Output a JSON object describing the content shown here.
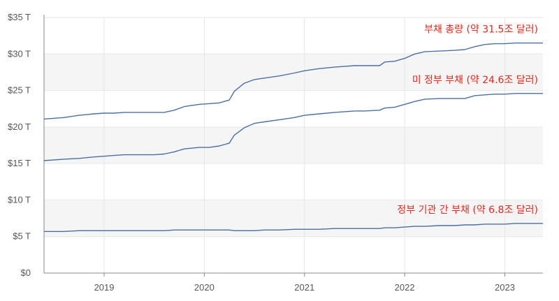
{
  "chart_data": {
    "type": "line",
    "ylim": [
      0,
      35
    ],
    "xlim": [
      2018.4,
      2023.38
    ],
    "yticks": [
      {
        "value": 0,
        "label": "$0"
      },
      {
        "value": 5,
        "label": "$5 T"
      },
      {
        "value": 10,
        "label": "$10 T"
      },
      {
        "value": 15,
        "label": "$15 T"
      },
      {
        "value": 20,
        "label": "$20 T"
      },
      {
        "value": 25,
        "label": "$25 T"
      },
      {
        "value": 30,
        "label": "$30 T"
      },
      {
        "value": 35,
        "label": "$35 T"
      }
    ],
    "xticks": [
      {
        "value": 2019,
        "label": "2019"
      },
      {
        "value": 2020,
        "label": "2020"
      },
      {
        "value": 2021,
        "label": "2021"
      },
      {
        "value": 2022,
        "label": "2022"
      },
      {
        "value": 2023,
        "label": "2023"
      }
    ],
    "grid": true,
    "line_color": "#4a6fa5",
    "annotation_color": "#e8261c",
    "series": [
      {
        "name": "부채 총량 (약 31.5조 달러)",
        "x": [
          2018.4,
          2018.6,
          2018.75,
          2018.9,
          2019.0,
          2019.1,
          2019.2,
          2019.35,
          2019.5,
          2019.6,
          2019.7,
          2019.8,
          2019.95,
          2020.05,
          2020.15,
          2020.25,
          2020.3,
          2020.4,
          2020.5,
          2020.6,
          2020.75,
          2020.9,
          2021.0,
          2021.15,
          2021.3,
          2021.4,
          2021.5,
          2021.6,
          2021.75,
          2021.8,
          2021.9,
          2022.0,
          2022.1,
          2022.2,
          2022.35,
          2022.5,
          2022.6,
          2022.7,
          2022.8,
          2022.9,
          2023.0,
          2023.1,
          2023.2,
          2023.38
        ],
        "values": [
          21.1,
          21.3,
          21.6,
          21.8,
          21.9,
          21.9,
          22.0,
          22.0,
          22.0,
          22.0,
          22.3,
          22.8,
          23.1,
          23.2,
          23.3,
          23.7,
          24.9,
          26.0,
          26.5,
          26.7,
          27.0,
          27.4,
          27.7,
          28.0,
          28.2,
          28.3,
          28.4,
          28.4,
          28.4,
          28.9,
          29.0,
          29.4,
          30.0,
          30.3,
          30.4,
          30.5,
          30.6,
          31.0,
          31.3,
          31.4,
          31.4,
          31.5,
          31.5,
          31.5
        ]
      },
      {
        "name": "미 정부 부채 (약 24.6조 달러)",
        "x": [
          2018.4,
          2018.6,
          2018.75,
          2018.9,
          2019.0,
          2019.1,
          2019.2,
          2019.35,
          2019.5,
          2019.6,
          2019.7,
          2019.8,
          2019.95,
          2020.05,
          2020.15,
          2020.25,
          2020.3,
          2020.4,
          2020.5,
          2020.6,
          2020.75,
          2020.9,
          2021.0,
          2021.15,
          2021.3,
          2021.4,
          2021.5,
          2021.6,
          2021.75,
          2021.8,
          2021.9,
          2022.0,
          2022.1,
          2022.2,
          2022.35,
          2022.5,
          2022.6,
          2022.7,
          2022.8,
          2022.9,
          2023.0,
          2023.1,
          2023.2,
          2023.38
        ],
        "values": [
          15.4,
          15.6,
          15.7,
          15.9,
          16.0,
          16.1,
          16.2,
          16.2,
          16.2,
          16.3,
          16.6,
          17.0,
          17.2,
          17.2,
          17.4,
          17.8,
          18.9,
          19.9,
          20.5,
          20.7,
          21.0,
          21.3,
          21.6,
          21.8,
          22.0,
          22.1,
          22.2,
          22.2,
          22.3,
          22.6,
          22.7,
          23.1,
          23.5,
          23.8,
          23.9,
          23.9,
          23.9,
          24.3,
          24.4,
          24.5,
          24.5,
          24.6,
          24.6,
          24.6
        ]
      },
      {
        "name": "정부 기관 간 부채 (약 6.8조 달러)",
        "x": [
          2018.4,
          2018.6,
          2018.75,
          2018.9,
          2019.0,
          2019.1,
          2019.2,
          2019.35,
          2019.5,
          2019.6,
          2019.7,
          2019.8,
          2019.95,
          2020.05,
          2020.15,
          2020.25,
          2020.3,
          2020.4,
          2020.5,
          2020.6,
          2020.75,
          2020.9,
          2021.0,
          2021.15,
          2021.3,
          2021.4,
          2021.5,
          2021.6,
          2021.75,
          2021.8,
          2021.9,
          2022.0,
          2022.1,
          2022.2,
          2022.35,
          2022.5,
          2022.6,
          2022.7,
          2022.8,
          2022.9,
          2023.0,
          2023.1,
          2023.2,
          2023.38
        ],
        "values": [
          5.7,
          5.7,
          5.8,
          5.8,
          5.8,
          5.8,
          5.8,
          5.8,
          5.8,
          5.8,
          5.9,
          5.9,
          5.9,
          5.9,
          5.9,
          5.9,
          5.8,
          5.8,
          5.8,
          5.9,
          5.9,
          6.0,
          6.0,
          6.0,
          6.1,
          6.1,
          6.1,
          6.1,
          6.1,
          6.2,
          6.2,
          6.3,
          6.4,
          6.4,
          6.5,
          6.5,
          6.6,
          6.6,
          6.7,
          6.7,
          6.7,
          6.8,
          6.8,
          6.8
        ]
      }
    ],
    "annotations": [
      {
        "text": "부채 총량 (약 31.5조 달러)",
        "series": 0
      },
      {
        "text": "미 정부 부채 (약 24.6조 달러)",
        "series": 1
      },
      {
        "text": "정부 기관 간 부채 (약 6.8조 달러)",
        "series": 2
      }
    ]
  }
}
